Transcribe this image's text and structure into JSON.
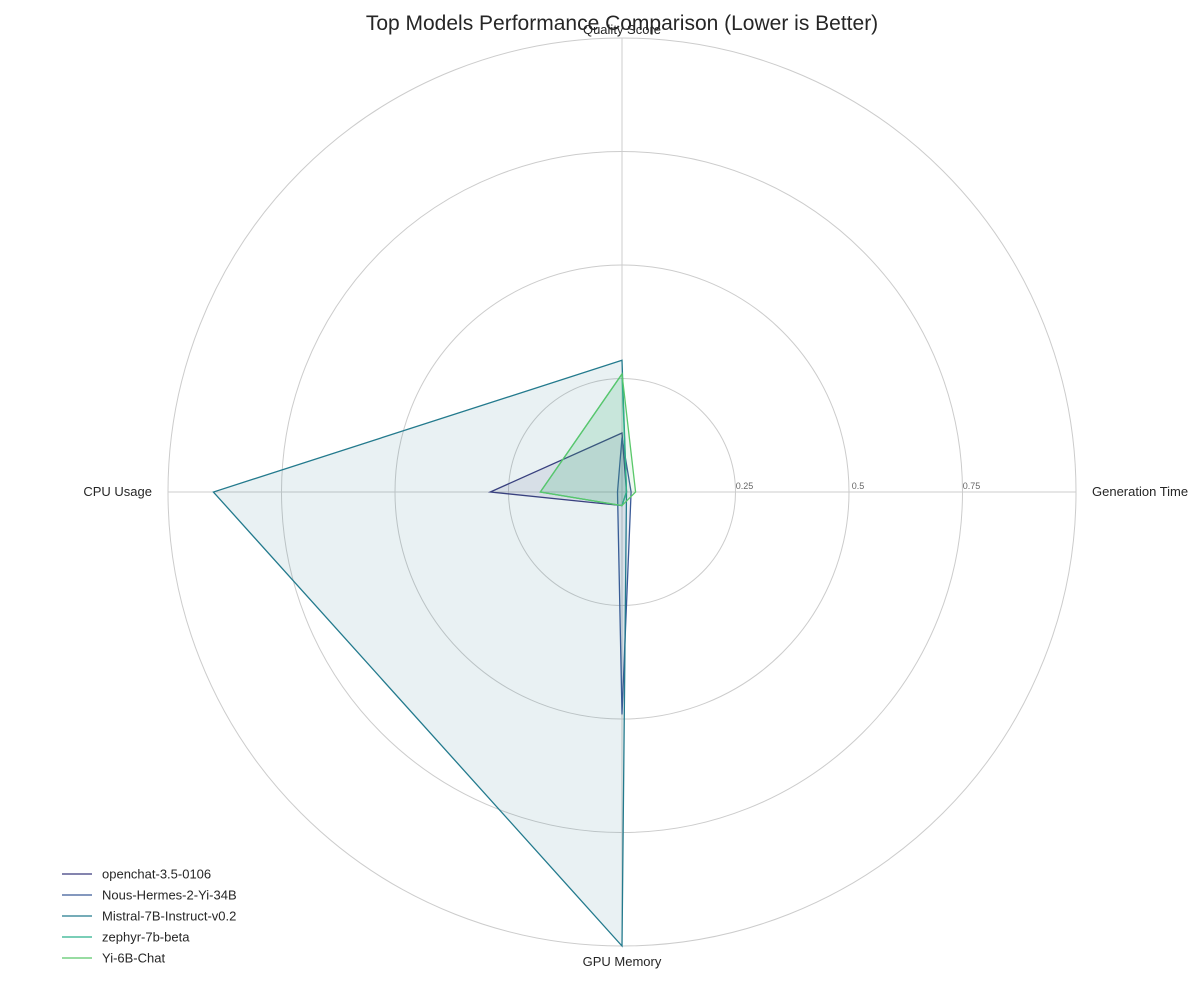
{
  "chart_data": {
    "type": "radar",
    "title": "Top Models Performance Comparison (Lower is Better)",
    "axes": [
      "Quality Score",
      "Generation Time",
      "GPU Memory",
      "CPU Usage"
    ],
    "rlim": [
      0,
      1
    ],
    "rticks": [
      0.25,
      0.5,
      0.75,
      1.0
    ],
    "rtick_labels": [
      "0.25",
      "0.5",
      "0.75",
      ""
    ],
    "grid": true,
    "legend_position": "lower-left",
    "series": [
      {
        "name": "openchat-3.5-0106",
        "color": "#3b3b7e",
        "values": [
          0.13,
          0.01,
          0.03,
          0.29
        ]
      },
      {
        "name": "Nous-Hermes-2-Yi-34B",
        "color": "#3a5a98",
        "values": [
          0.12,
          0.02,
          0.49,
          0.01
        ]
      },
      {
        "name": "Mistral-7B-Instruct-v0.2",
        "color": "#237a8d",
        "values": [
          0.29,
          0.01,
          1.0,
          0.9
        ]
      },
      {
        "name": "zephyr-7b-beta",
        "color": "#2bb08c",
        "values": [
          0.26,
          0.01,
          0.03,
          0.18
        ]
      },
      {
        "name": "Yi-6B-Chat",
        "color": "#5ac86a",
        "values": [
          0.26,
          0.03,
          0.03,
          0.18
        ]
      }
    ]
  }
}
